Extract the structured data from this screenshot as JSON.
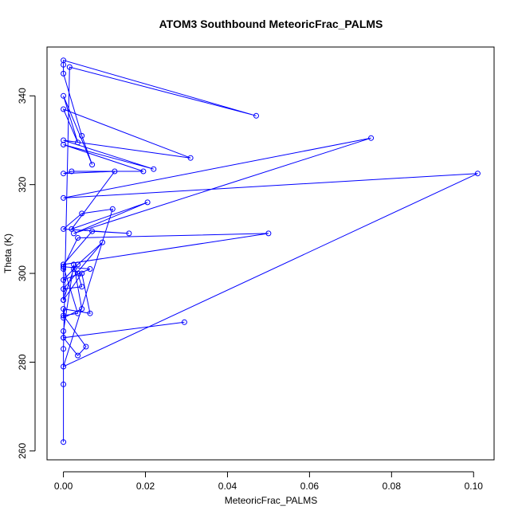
{
  "chart_data": {
    "type": "line",
    "title": "ATOM3 Southbound MeteoricFrac_PALMS",
    "xlabel": "MeteoricFrac_PALMS",
    "ylabel": "Theta (K)",
    "xlim": [
      -0.004,
      0.105
    ],
    "ylim": [
      258,
      351
    ],
    "xticks": [
      0.0,
      0.02,
      0.04,
      0.06,
      0.08,
      0.1
    ],
    "xtick_labels": [
      "0.00",
      "0.02",
      "0.04",
      "0.06",
      "0.08",
      "0.10"
    ],
    "yticks": [
      260,
      280,
      300,
      320,
      340
    ],
    "ytick_labels": [
      "260",
      "280",
      "300",
      "320",
      "340"
    ],
    "grid": false,
    "series": [
      {
        "color": "#0000ff",
        "marker": "open-circle",
        "x": [
          0,
          0,
          0,
          0.0015,
          0.047,
          0,
          0,
          0,
          0.0045,
          0.007,
          0,
          0.0035,
          0,
          0.031,
          0,
          0.022,
          0,
          0.0195,
          0.002,
          0,
          0.0125,
          0.002,
          0.0205,
          0.0025,
          0.075,
          0,
          0.101,
          0,
          0.012,
          0.0045,
          0,
          0.016,
          0.007,
          0,
          0.05,
          0.0035,
          0,
          0.0065,
          0,
          0.0035,
          0.0095,
          0,
          0.0045,
          0.0035,
          0.0025,
          0,
          0.0045,
          0.0065,
          0,
          0,
          0.0045,
          0.0025,
          0,
          0,
          0.0295,
          0,
          0.0035,
          0.0055,
          0,
          0.0035,
          0,
          0,
          0,
          0
        ],
        "y": [
          262,
          275,
          283,
          346.5,
          335.5,
          348,
          347,
          345,
          331,
          324.5,
          340,
          329.5,
          337,
          326,
          330,
          323.5,
          329,
          323,
          323,
          322.5,
          323,
          310,
          316,
          309,
          330.5,
          317,
          322.5,
          279,
          314.5,
          313.5,
          310,
          309,
          309.5,
          302,
          309,
          308,
          301.5,
          301,
          298.5,
          302,
          307,
          296.5,
          297,
          300,
          301,
          294,
          300,
          291,
          292,
          290,
          292,
          302,
          287,
          285.5,
          289,
          285.5,
          281.5,
          283.5,
          290.5,
          291,
          301.5,
          302,
          301,
          294
        ]
      }
    ]
  }
}
